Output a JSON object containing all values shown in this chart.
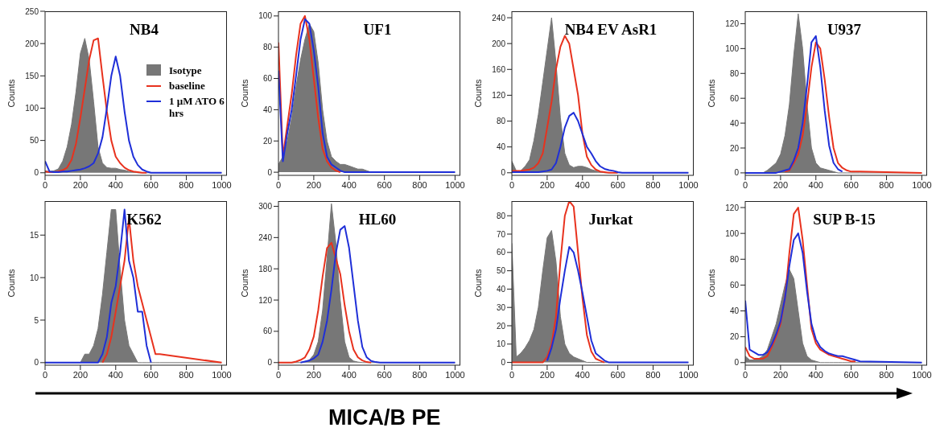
{
  "chart_data": [
    {
      "type": "line",
      "title": "NB4",
      "ylabel": "Counts",
      "legend": "right",
      "xlim": [
        0,
        1030
      ],
      "xticks": [
        0,
        200,
        400,
        600,
        800,
        1000
      ],
      "ylim": [
        -4,
        250
      ],
      "yticks": [
        0,
        50,
        100,
        150,
        200,
        250
      ],
      "x": [
        0,
        25,
        50,
        75,
        100,
        125,
        150,
        175,
        200,
        225,
        250,
        275,
        300,
        325,
        350,
        375,
        400,
        425,
        450,
        475,
        500,
        525,
        550,
        575,
        600,
        625,
        650,
        1000
      ],
      "series": [
        {
          "name": "Isotype",
          "type": "area",
          "color": "#777777",
          "values": [
            3,
            2,
            3,
            6,
            18,
            40,
            75,
            125,
            185,
            208,
            175,
            110,
            40,
            15,
            8,
            7,
            7,
            5,
            4,
            2,
            1,
            0,
            0,
            0,
            0,
            0,
            0,
            0
          ]
        },
        {
          "name": "baseline",
          "type": "line",
          "color": "#e8321e",
          "values": [
            2,
            1,
            1,
            2,
            4,
            8,
            20,
            45,
            85,
            130,
            175,
            205,
            208,
            150,
            95,
            50,
            25,
            15,
            8,
            4,
            2,
            1,
            0,
            0,
            null,
            null,
            null,
            null
          ]
        },
        {
          "name": "1 µM ATO 6 hrs",
          "type": "line",
          "color": "#1f2fd8",
          "values": [
            18,
            2,
            1,
            1,
            2,
            2,
            3,
            4,
            5,
            7,
            10,
            15,
            30,
            55,
            100,
            150,
            180,
            150,
            95,
            50,
            25,
            12,
            5,
            2,
            0,
            0,
            0,
            0
          ]
        }
      ]
    },
    {
      "type": "line",
      "title": "UF1",
      "ylabel": "Counts",
      "xlim": [
        0,
        1030
      ],
      "xticks": [
        0,
        200,
        400,
        600,
        800,
        1000
      ],
      "ylim": [
        -2,
        103
      ],
      "yticks": [
        0,
        20,
        40,
        60,
        80,
        100
      ],
      "x": [
        0,
        25,
        50,
        75,
        100,
        125,
        150,
        175,
        200,
        225,
        250,
        275,
        300,
        325,
        350,
        375,
        400,
        425,
        450,
        475,
        500,
        525,
        550,
        575,
        600,
        625,
        650,
        1000
      ],
      "series": [
        {
          "type": "area",
          "color": "#777777",
          "values": [
            5,
            10,
            20,
            35,
            55,
            72,
            85,
            95,
            90,
            70,
            40,
            20,
            10,
            7,
            5,
            5,
            4,
            3,
            2,
            2,
            1,
            0,
            0,
            0,
            0,
            0,
            0,
            0
          ]
        },
        {
          "type": "line",
          "color": "#e8321e",
          "values": [
            83,
            10,
            30,
            50,
            75,
            95,
            100,
            85,
            60,
            35,
            15,
            7,
            3,
            1,
            0,
            null,
            null,
            null,
            null,
            null,
            null,
            null,
            null,
            null,
            null,
            null,
            null,
            null
          ]
        },
        {
          "type": "line",
          "color": "#1f2fd8",
          "values": [
            65,
            7,
            25,
            40,
            62,
            85,
            98,
            95,
            78,
            55,
            25,
            10,
            5,
            3,
            1,
            0,
            0,
            0,
            0,
            0,
            0,
            0,
            0,
            0,
            0,
            0,
            0,
            0
          ]
        }
      ]
    },
    {
      "type": "line",
      "title": "NB4 EV AsR1",
      "ylabel": "Counts",
      "xlim": [
        0,
        1030
      ],
      "xticks": [
        0,
        200,
        400,
        600,
        800,
        1000
      ],
      "ylim": [
        -4,
        250
      ],
      "yticks": [
        0,
        40,
        80,
        120,
        160,
        200,
        240
      ],
      "x": [
        0,
        25,
        50,
        75,
        100,
        125,
        150,
        175,
        200,
        225,
        250,
        275,
        300,
        325,
        350,
        375,
        400,
        425,
        450,
        475,
        500,
        525,
        550,
        575,
        600,
        625,
        650,
        1000
      ],
      "series": [
        {
          "type": "area",
          "color": "#777777",
          "values": [
            18,
            3,
            3,
            10,
            20,
            50,
            90,
            140,
            190,
            240,
            170,
            85,
            30,
            12,
            8,
            10,
            10,
            8,
            5,
            3,
            1,
            0,
            0,
            0,
            0,
            0,
            0,
            0
          ]
        },
        {
          "type": "line",
          "color": "#e8321e",
          "values": [
            3,
            3,
            3,
            4,
            5,
            8,
            15,
            30,
            70,
            110,
            160,
            195,
            212,
            200,
            160,
            120,
            60,
            25,
            12,
            5,
            2,
            1,
            0,
            0,
            0,
            null,
            null,
            null
          ]
        },
        {
          "type": "line",
          "color": "#1f2fd8",
          "values": [
            1,
            1,
            1,
            1,
            1,
            1,
            1,
            2,
            3,
            5,
            15,
            40,
            70,
            88,
            93,
            80,
            60,
            40,
            30,
            18,
            10,
            6,
            4,
            3,
            1,
            0,
            0,
            0
          ]
        }
      ]
    },
    {
      "type": "line",
      "title": "U937",
      "ylabel": "Counts",
      "xlim": [
        0,
        1030
      ],
      "xticks": [
        0,
        200,
        400,
        600,
        800,
        1000
      ],
      "ylim": [
        -2,
        130
      ],
      "yticks": [
        0,
        20,
        40,
        60,
        80,
        100,
        120
      ],
      "x": [
        0,
        25,
        50,
        75,
        100,
        125,
        150,
        175,
        200,
        225,
        250,
        275,
        300,
        325,
        350,
        375,
        400,
        425,
        450,
        475,
        500,
        525,
        550,
        575,
        600,
        625,
        650,
        1000
      ],
      "series": [
        {
          "type": "area",
          "color": "#777777",
          "values": [
            0,
            0,
            0,
            0,
            0,
            2,
            5,
            8,
            15,
            30,
            55,
            95,
            128,
            100,
            55,
            20,
            8,
            4,
            3,
            2,
            1,
            0,
            0,
            0,
            0,
            0,
            0,
            0
          ]
        },
        {
          "type": "line",
          "color": "#e8321e",
          "values": [
            null,
            null,
            null,
            null,
            null,
            null,
            null,
            null,
            null,
            1,
            2,
            8,
            15,
            30,
            55,
            85,
            105,
            100,
            75,
            45,
            20,
            8,
            4,
            2,
            1,
            1,
            1,
            0
          ]
        },
        {
          "type": "line",
          "color": "#1f2fd8",
          "values": [
            0,
            0,
            0,
            0,
            0,
            0,
            0,
            0,
            1,
            2,
            3,
            10,
            20,
            40,
            70,
            105,
            110,
            85,
            50,
            22,
            8,
            3,
            1,
            null,
            null,
            null,
            null,
            null
          ]
        }
      ]
    },
    {
      "type": "line",
      "title": "K562",
      "ylabel": "Counts",
      "xlim": [
        0,
        1030
      ],
      "xticks": [
        0,
        200,
        400,
        600,
        800,
        1000
      ],
      "ylim": [
        -0.3,
        19
      ],
      "yticks": [
        0,
        5,
        10,
        15
      ],
      "x": [
        0,
        25,
        50,
        75,
        100,
        125,
        150,
        175,
        200,
        225,
        250,
        275,
        300,
        325,
        350,
        375,
        400,
        425,
        450,
        475,
        500,
        525,
        550,
        575,
        600,
        625,
        650,
        1000
      ],
      "series": [
        {
          "type": "area",
          "color": "#777777",
          "values": [
            0,
            0,
            0,
            0,
            0,
            0,
            0,
            0,
            0,
            1,
            1,
            2,
            4,
            8,
            13,
            18,
            18,
            11,
            5,
            2,
            1,
            0,
            0,
            0,
            0,
            0,
            0,
            0
          ]
        },
        {
          "type": "line",
          "color": "#e8321e",
          "values": [
            null,
            null,
            null,
            null,
            null,
            null,
            null,
            null,
            null,
            null,
            null,
            null,
            null,
            0,
            1,
            3,
            6,
            9,
            12,
            17,
            12,
            9,
            7,
            5,
            3,
            1,
            1,
            0
          ]
        },
        {
          "type": "line",
          "color": "#1f2fd8",
          "values": [
            0,
            0,
            0,
            0,
            0,
            0,
            0,
            0,
            0,
            0,
            0,
            0,
            0,
            1,
            3,
            7,
            9,
            13,
            18,
            12,
            10,
            6,
            6,
            2,
            0,
            null,
            null,
            null
          ]
        }
      ]
    },
    {
      "type": "line",
      "title": "HL60",
      "ylabel": "Counts",
      "xlim": [
        0,
        1030
      ],
      "xticks": [
        0,
        200,
        400,
        600,
        800,
        1000
      ],
      "ylim": [
        -5,
        310
      ],
      "yticks": [
        0,
        60,
        120,
        180,
        240,
        300
      ],
      "x": [
        0,
        25,
        50,
        75,
        100,
        125,
        150,
        175,
        200,
        225,
        250,
        275,
        300,
        325,
        350,
        375,
        400,
        425,
        450,
        475,
        500,
        525,
        550,
        575,
        600,
        625,
        650,
        1000
      ],
      "series": [
        {
          "type": "area",
          "color": "#777777",
          "values": [
            0,
            0,
            0,
            0,
            0,
            0,
            2,
            5,
            15,
            40,
            100,
            200,
            305,
            230,
            120,
            40,
            10,
            3,
            1,
            0,
            0,
            0,
            0,
            0,
            0,
            0,
            0,
            0
          ]
        },
        {
          "type": "line",
          "color": "#e8321e",
          "values": [
            0,
            0,
            0,
            0,
            2,
            5,
            10,
            25,
            50,
            100,
            165,
            220,
            230,
            200,
            170,
            110,
            60,
            25,
            10,
            4,
            1,
            0,
            null,
            null,
            null,
            null,
            null,
            null
          ]
        },
        {
          "type": "line",
          "color": "#1f2fd8",
          "values": [
            null,
            null,
            null,
            null,
            null,
            0,
            2,
            4,
            8,
            15,
            40,
            80,
            140,
            210,
            255,
            262,
            220,
            150,
            80,
            30,
            10,
            3,
            1,
            0,
            0,
            0,
            0,
            0
          ]
        }
      ]
    },
    {
      "type": "line",
      "title": "Jurkat",
      "ylabel": "Counts",
      "xlim": [
        0,
        1030
      ],
      "xticks": [
        0,
        200,
        400,
        600,
        800,
        1000
      ],
      "ylim": [
        -1.5,
        88
      ],
      "yticks": [
        0,
        10,
        20,
        30,
        40,
        50,
        60,
        70,
        80
      ],
      "x": [
        0,
        25,
        50,
        75,
        100,
        125,
        150,
        175,
        200,
        225,
        250,
        275,
        300,
        325,
        350,
        375,
        400,
        425,
        450,
        475,
        500,
        525,
        550,
        575,
        600,
        625,
        650,
        1000
      ],
      "series": [
        {
          "type": "area",
          "color": "#777777",
          "values": [
            65,
            3,
            5,
            8,
            12,
            18,
            30,
            50,
            68,
            72,
            55,
            25,
            10,
            5,
            3,
            2,
            1,
            0,
            0,
            0,
            0,
            0,
            0,
            0,
            0,
            0,
            0,
            0
          ]
        },
        {
          "type": "line",
          "color": "#e8321e",
          "values": [
            0,
            0,
            0,
            0,
            0,
            0,
            0,
            0,
            3,
            10,
            25,
            55,
            80,
            88,
            85,
            60,
            35,
            15,
            6,
            2,
            1,
            0,
            null,
            null,
            null,
            null,
            null,
            null
          ]
        },
        {
          "type": "line",
          "color": "#1f2fd8",
          "values": [
            null,
            null,
            null,
            null,
            null,
            null,
            null,
            null,
            1,
            8,
            18,
            35,
            50,
            63,
            60,
            50,
            38,
            25,
            12,
            5,
            3,
            1,
            0,
            0,
            0,
            0,
            0,
            0
          ]
        }
      ]
    },
    {
      "type": "line",
      "title": "SUP B-15",
      "ylabel": "Counts",
      "xlim": [
        0,
        1030
      ],
      "xticks": [
        0,
        200,
        400,
        600,
        800,
        1000
      ],
      "ylim": [
        -2,
        125
      ],
      "yticks": [
        0,
        20,
        40,
        60,
        80,
        100,
        120
      ],
      "x": [
        0,
        25,
        50,
        75,
        100,
        125,
        150,
        175,
        200,
        225,
        250,
        275,
        300,
        325,
        350,
        375,
        400,
        425,
        450,
        475,
        500,
        525,
        550,
        575,
        600,
        625,
        650,
        1000
      ],
      "series": [
        {
          "type": "area",
          "color": "#777777",
          "values": [
            5,
            2,
            2,
            3,
            5,
            10,
            20,
            30,
            45,
            60,
            72,
            65,
            40,
            15,
            5,
            2,
            1,
            0,
            0,
            0,
            0,
            0,
            0,
            0,
            0,
            0,
            0,
            0
          ]
        },
        {
          "type": "line",
          "color": "#e8321e",
          "values": [
            12,
            5,
            3,
            3,
            3,
            5,
            12,
            20,
            30,
            50,
            85,
            115,
            120,
            95,
            60,
            26,
            15,
            10,
            8,
            6,
            5,
            4,
            3,
            2,
            1,
            1,
            null,
            null
          ]
        },
        {
          "type": "line",
          "color": "#1f2fd8",
          "values": [
            48,
            10,
            8,
            6,
            6,
            8,
            14,
            22,
            32,
            50,
            75,
            95,
            100,
            85,
            55,
            30,
            18,
            12,
            9,
            7,
            6,
            5,
            5,
            4,
            3,
            2,
            1,
            0
          ]
        }
      ]
    },
    {
      "type": "other",
      "xlabel": "MICA/B PE"
    }
  ]
}
